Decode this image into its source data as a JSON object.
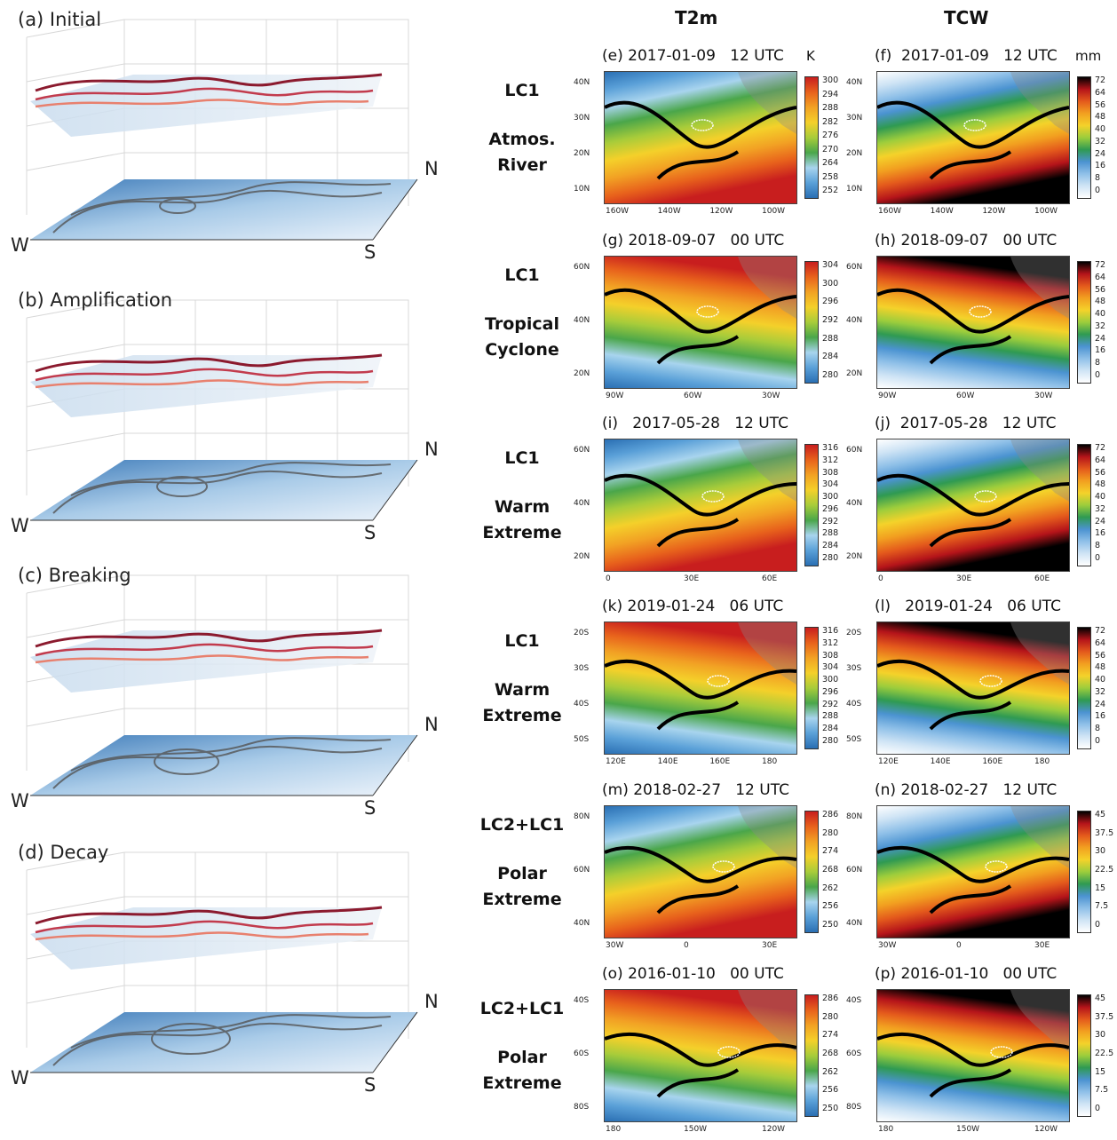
{
  "left_panels": [
    {
      "title": "(a) Initial",
      "dirs": {
        "w": "W",
        "s": "S",
        "n": "N"
      }
    },
    {
      "title": "(b) Amplification",
      "dirs": {
        "w": "W",
        "s": "S",
        "n": "N"
      }
    },
    {
      "title": "(c) Breaking",
      "dirs": {
        "w": "W",
        "s": "S",
        "n": "N"
      }
    },
    {
      "title": "(d) Decay",
      "dirs": {
        "w": "W",
        "s": "S",
        "n": "N"
      }
    }
  ],
  "columns": {
    "t2m": "T2m",
    "tcw": "TCW"
  },
  "units": {
    "t2m": "K",
    "tcw": "mm"
  },
  "rows": [
    {
      "lc": "LC1",
      "event": [
        "Atmos.",
        "River"
      ],
      "left_title": "(e) 2017-01-09   12 UTC",
      "right_title": "(f)  2017-01-09   12 UTC",
      "lat": [
        "40N",
        "30N",
        "20N",
        "10N"
      ],
      "lon": [
        "160W",
        "140W",
        "120W",
        "100W"
      ],
      "t2m_cbar": [
        "300",
        "294",
        "288",
        "282",
        "276",
        "270",
        "264",
        "258",
        "252"
      ],
      "tcw_cbar": [
        "72",
        "64",
        "56",
        "48",
        "40",
        "32",
        "24",
        "16",
        "8",
        "0"
      ]
    },
    {
      "lc": "LC1",
      "event": [
        "Tropical",
        "Cyclone"
      ],
      "left_title": "(g) 2018-09-07   00 UTC",
      "right_title": "(h) 2018-09-07   00 UTC",
      "lat": [
        "60N",
        "40N",
        "20N"
      ],
      "lon": [
        "90W",
        "60W",
        "30W"
      ],
      "t2m_cbar": [
        "304",
        "300",
        "296",
        "292",
        "288",
        "284",
        "280"
      ],
      "tcw_cbar": [
        "72",
        "64",
        "56",
        "48",
        "40",
        "32",
        "24",
        "16",
        "8",
        "0"
      ]
    },
    {
      "lc": "LC1",
      "event": [
        "Warm",
        "Extreme"
      ],
      "left_title": "(i)   2017-05-28   12 UTC",
      "right_title": "(j)  2017-05-28   12 UTC",
      "lat": [
        "60N",
        "40N",
        "20N"
      ],
      "lon": [
        "0",
        "30E",
        "60E"
      ],
      "t2m_cbar": [
        "316",
        "312",
        "308",
        "304",
        "300",
        "296",
        "292",
        "288",
        "284",
        "280"
      ],
      "tcw_cbar": [
        "72",
        "64",
        "56",
        "48",
        "40",
        "32",
        "24",
        "16",
        "8",
        "0"
      ]
    },
    {
      "lc": "LC1",
      "event": [
        "Warm",
        "Extreme"
      ],
      "left_title": "(k) 2019-01-24   06 UTC",
      "right_title": "(l)   2019-01-24   06 UTC",
      "lat": [
        "20S",
        "30S",
        "40S",
        "50S"
      ],
      "lon": [
        "120E",
        "140E",
        "160E",
        "180"
      ],
      "t2m_cbar": [
        "316",
        "312",
        "308",
        "304",
        "300",
        "296",
        "292",
        "288",
        "284",
        "280"
      ],
      "tcw_cbar": [
        "72",
        "64",
        "56",
        "48",
        "40",
        "32",
        "24",
        "16",
        "8",
        "0"
      ]
    },
    {
      "lc": "LC2+LC1",
      "event": [
        "Polar",
        "Extreme"
      ],
      "left_title": "(m) 2018-02-27   12 UTC",
      "right_title": "(n) 2018-02-27   12 UTC",
      "lat": [
        "80N",
        "60N",
        "40N"
      ],
      "lon": [
        "30W",
        "0",
        "30E"
      ],
      "t2m_cbar": [
        "286",
        "280",
        "274",
        "268",
        "262",
        "256",
        "250"
      ],
      "tcw_cbar": [
        "45",
        "37.5",
        "30",
        "22.5",
        "15",
        "7.5",
        "0"
      ]
    },
    {
      "lc": "LC2+LC1",
      "event": [
        "Polar",
        "Extreme"
      ],
      "left_title": "(o) 2016-01-10   00 UTC",
      "right_title": "(p) 2016-01-10   00 UTC",
      "lat": [
        "40S",
        "60S",
        "80S"
      ],
      "lon": [
        "180",
        "150W",
        "120W"
      ],
      "t2m_cbar": [
        "286",
        "280",
        "274",
        "268",
        "262",
        "256",
        "250"
      ],
      "tcw_cbar": [
        "45",
        "37.5",
        "30",
        "22.5",
        "15",
        "7.5",
        "0"
      ]
    }
  ],
  "colors": {
    "t2m_ramp": [
      "#2a6fb3",
      "#5aa0d8",
      "#a8d4ee",
      "#4aa64a",
      "#a8cc3a",
      "#f4d02a",
      "#f2a224",
      "#e8621c",
      "#c81e1e"
    ],
    "tcw_ramp": [
      "#ffffff",
      "#cfe4f5",
      "#8fc0e8",
      "#4b93d1",
      "#2f9a52",
      "#9ccd3c",
      "#f4d22a",
      "#f2a020",
      "#e45a1c",
      "#b5141a",
      "#000000"
    ],
    "contour": "#000000",
    "pv_line": "#8b1a2e"
  }
}
